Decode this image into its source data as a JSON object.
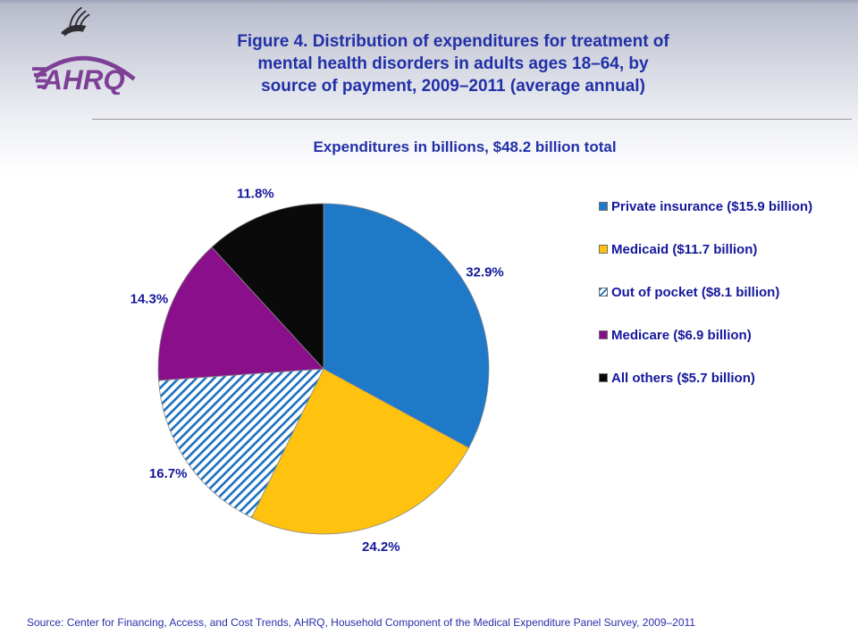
{
  "logo": {
    "org": "AHRQ",
    "brand_color": "#7E3F97",
    "eagle_icon": "hhs-eagle"
  },
  "header": {
    "title_lines": [
      "Figure 4. Distribution of expenditures for treatment of",
      "mental health disorders in adults ages 18–64, by",
      "source of payment, 2009–2011 (average annual)"
    ],
    "title_color": "#2230a8"
  },
  "subtitle": "Expenditures in billions, $48.2 billion total",
  "chart_data": {
    "type": "pie",
    "title": "Figure 4. Distribution of expenditures for treatment of mental health disorders in adults ages 18–64, by source of payment, 2009–2011 (average annual)",
    "subtitle": "Expenditures in billions, $48.2 billion total",
    "total_billions": 48.2,
    "start_angle_deg": 0,
    "direction": "clockwise",
    "legend_position": "right",
    "slice_label_style": "percent-outside",
    "label_color": "#14189b",
    "slices": [
      {
        "legend": "Private insurance ($15.9 billion)",
        "billions": 15.9,
        "percent": 32.9,
        "label": "32.9%",
        "fill": "#1E79C8",
        "pattern": "solid"
      },
      {
        "legend": "Medicaid ($11.7 billion)",
        "billions": 11.7,
        "percent": 24.2,
        "label": "24.2%",
        "fill": "#FFC20E",
        "pattern": "solid"
      },
      {
        "legend": "Out of pocket ($8.1 billion)",
        "billions": 8.1,
        "percent": 16.7,
        "label": "16.7%",
        "fill": "#1B6FBE",
        "pattern": "diagonal-stripes"
      },
      {
        "legend": "Medicare ($6.9 billion)",
        "billions": 6.9,
        "percent": 14.3,
        "label": "14.3%",
        "fill": "#8A0F8A",
        "pattern": "solid"
      },
      {
        "legend": "All others ($5.7 billion)",
        "billions": 5.7,
        "percent": 11.8,
        "label": "11.8%",
        "fill": "#0A0A0A",
        "pattern": "solid"
      }
    ]
  },
  "footer": {
    "source": "Source: Center for Financing, Access, and Cost Trends, AHRQ, Household Component of the Medical Expenditure Panel Survey, 2009–2011"
  }
}
